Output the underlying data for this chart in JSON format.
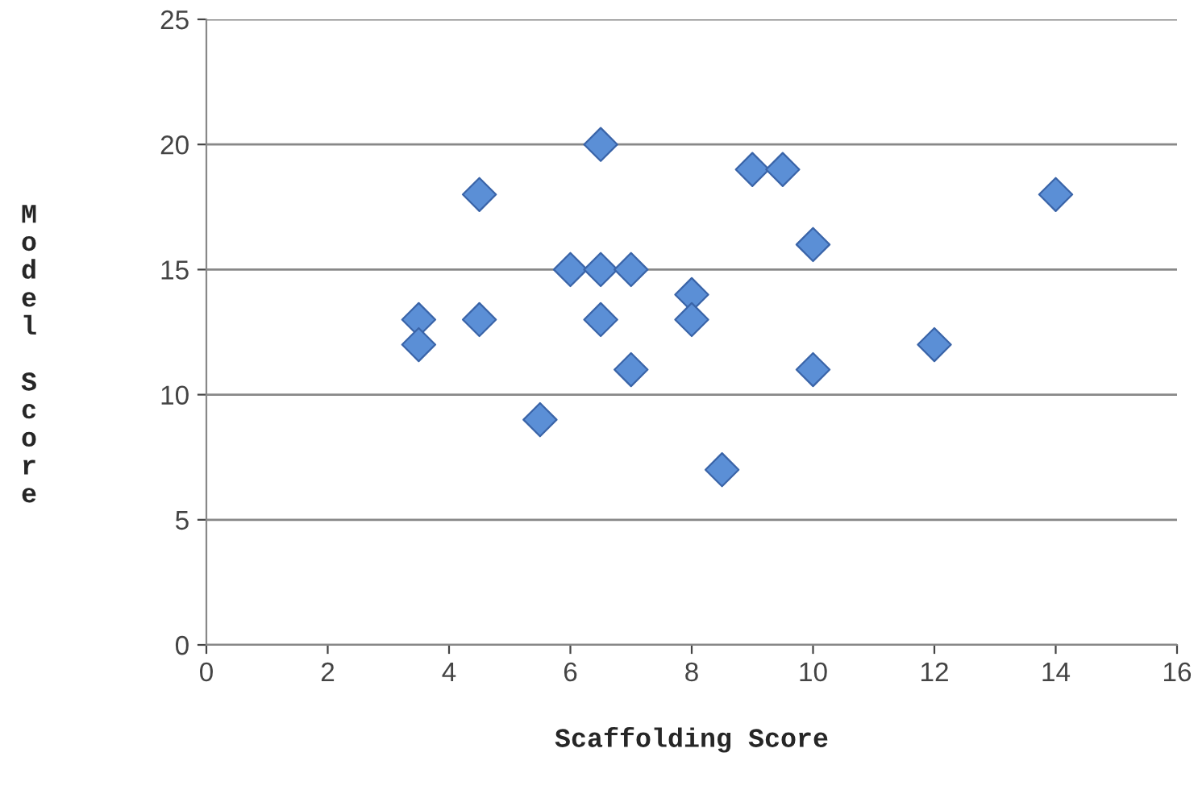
{
  "chart_data": {
    "type": "scatter",
    "xlabel": "Scaffolding Score",
    "ylabel": "Model Score",
    "x": [
      3.5,
      3.5,
      4.5,
      4.5,
      5.5,
      6,
      6.5,
      6.5,
      6.5,
      7,
      7,
      8,
      8,
      8.5,
      9,
      9.5,
      10,
      10,
      12,
      14
    ],
    "values": [
      13,
      12,
      18,
      13,
      9,
      15,
      20,
      15,
      13,
      15,
      11,
      14,
      13,
      7,
      19,
      19,
      16,
      11,
      12,
      18
    ],
    "color": "#5b8fd6",
    "marker": "diamond",
    "grid": "y",
    "xlim": [
      0,
      16
    ],
    "xticks": [
      0,
      2,
      4,
      6,
      8,
      10,
      12,
      14,
      16
    ],
    "ylim": [
      0,
      25
    ],
    "yticks": [
      0,
      5,
      10,
      15,
      20,
      25
    ]
  }
}
